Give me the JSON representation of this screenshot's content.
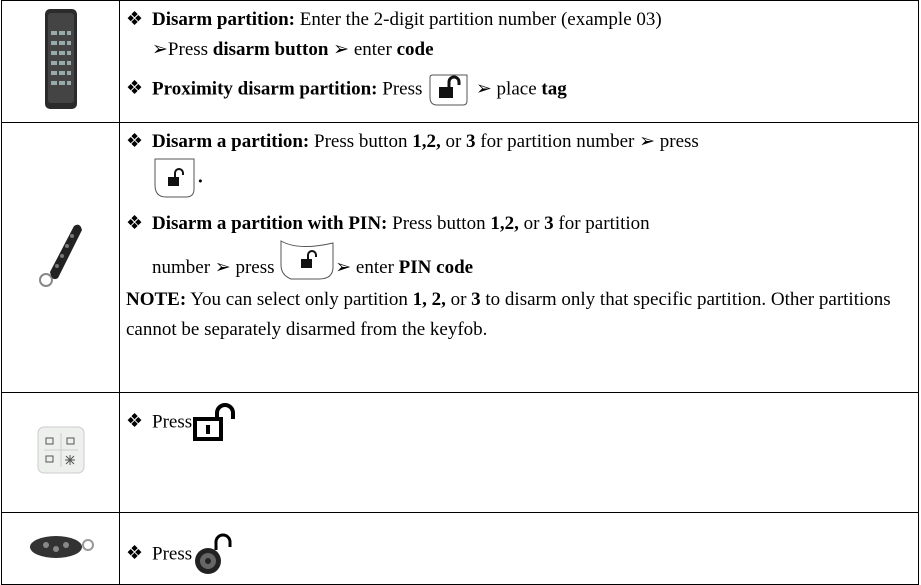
{
  "rows": [
    {
      "paragraphs": [
        {
          "bullet": "❖",
          "runs": [
            "Disarm partition:",
            " Enter the 2-digit partition number (example 03)",
            "➢Press ",
            "disarm button",
            " ➢ enter ",
            "code"
          ]
        },
        {
          "bullet": "❖",
          "runs": [
            "Proximity disarm partition:",
            " Press ",
            " ➢ place ",
            "tag"
          ]
        }
      ]
    },
    {
      "paragraphs": [
        {
          "bullet": "❖",
          "runs": [
            "Disarm a partition:",
            " Press button ",
            "1,2,",
            " or ",
            "3",
            " for partition number ➢ press",
            "."
          ]
        },
        {
          "bullet": "❖",
          "runs": [
            "Disarm a partition with PIN:",
            " Press button ",
            "1,2,",
            " or ",
            "3",
            " for partition",
            "number ➢ press ",
            "➢ enter ",
            "PIN code"
          ]
        },
        {
          "runs": [
            "NOTE:",
            " You can select only partition ",
            "1, 2,",
            " or ",
            "3",
            " to disarm only that specific partition. Other partitions cannot be separately disarmed from the keyfob."
          ]
        }
      ]
    },
    {
      "paragraphs": [
        {
          "bullet": "❖",
          "runs": [
            "Press"
          ]
        }
      ]
    },
    {
      "paragraphs": [
        {
          "bullet": "❖",
          "runs": [
            "Press"
          ]
        }
      ]
    }
  ]
}
